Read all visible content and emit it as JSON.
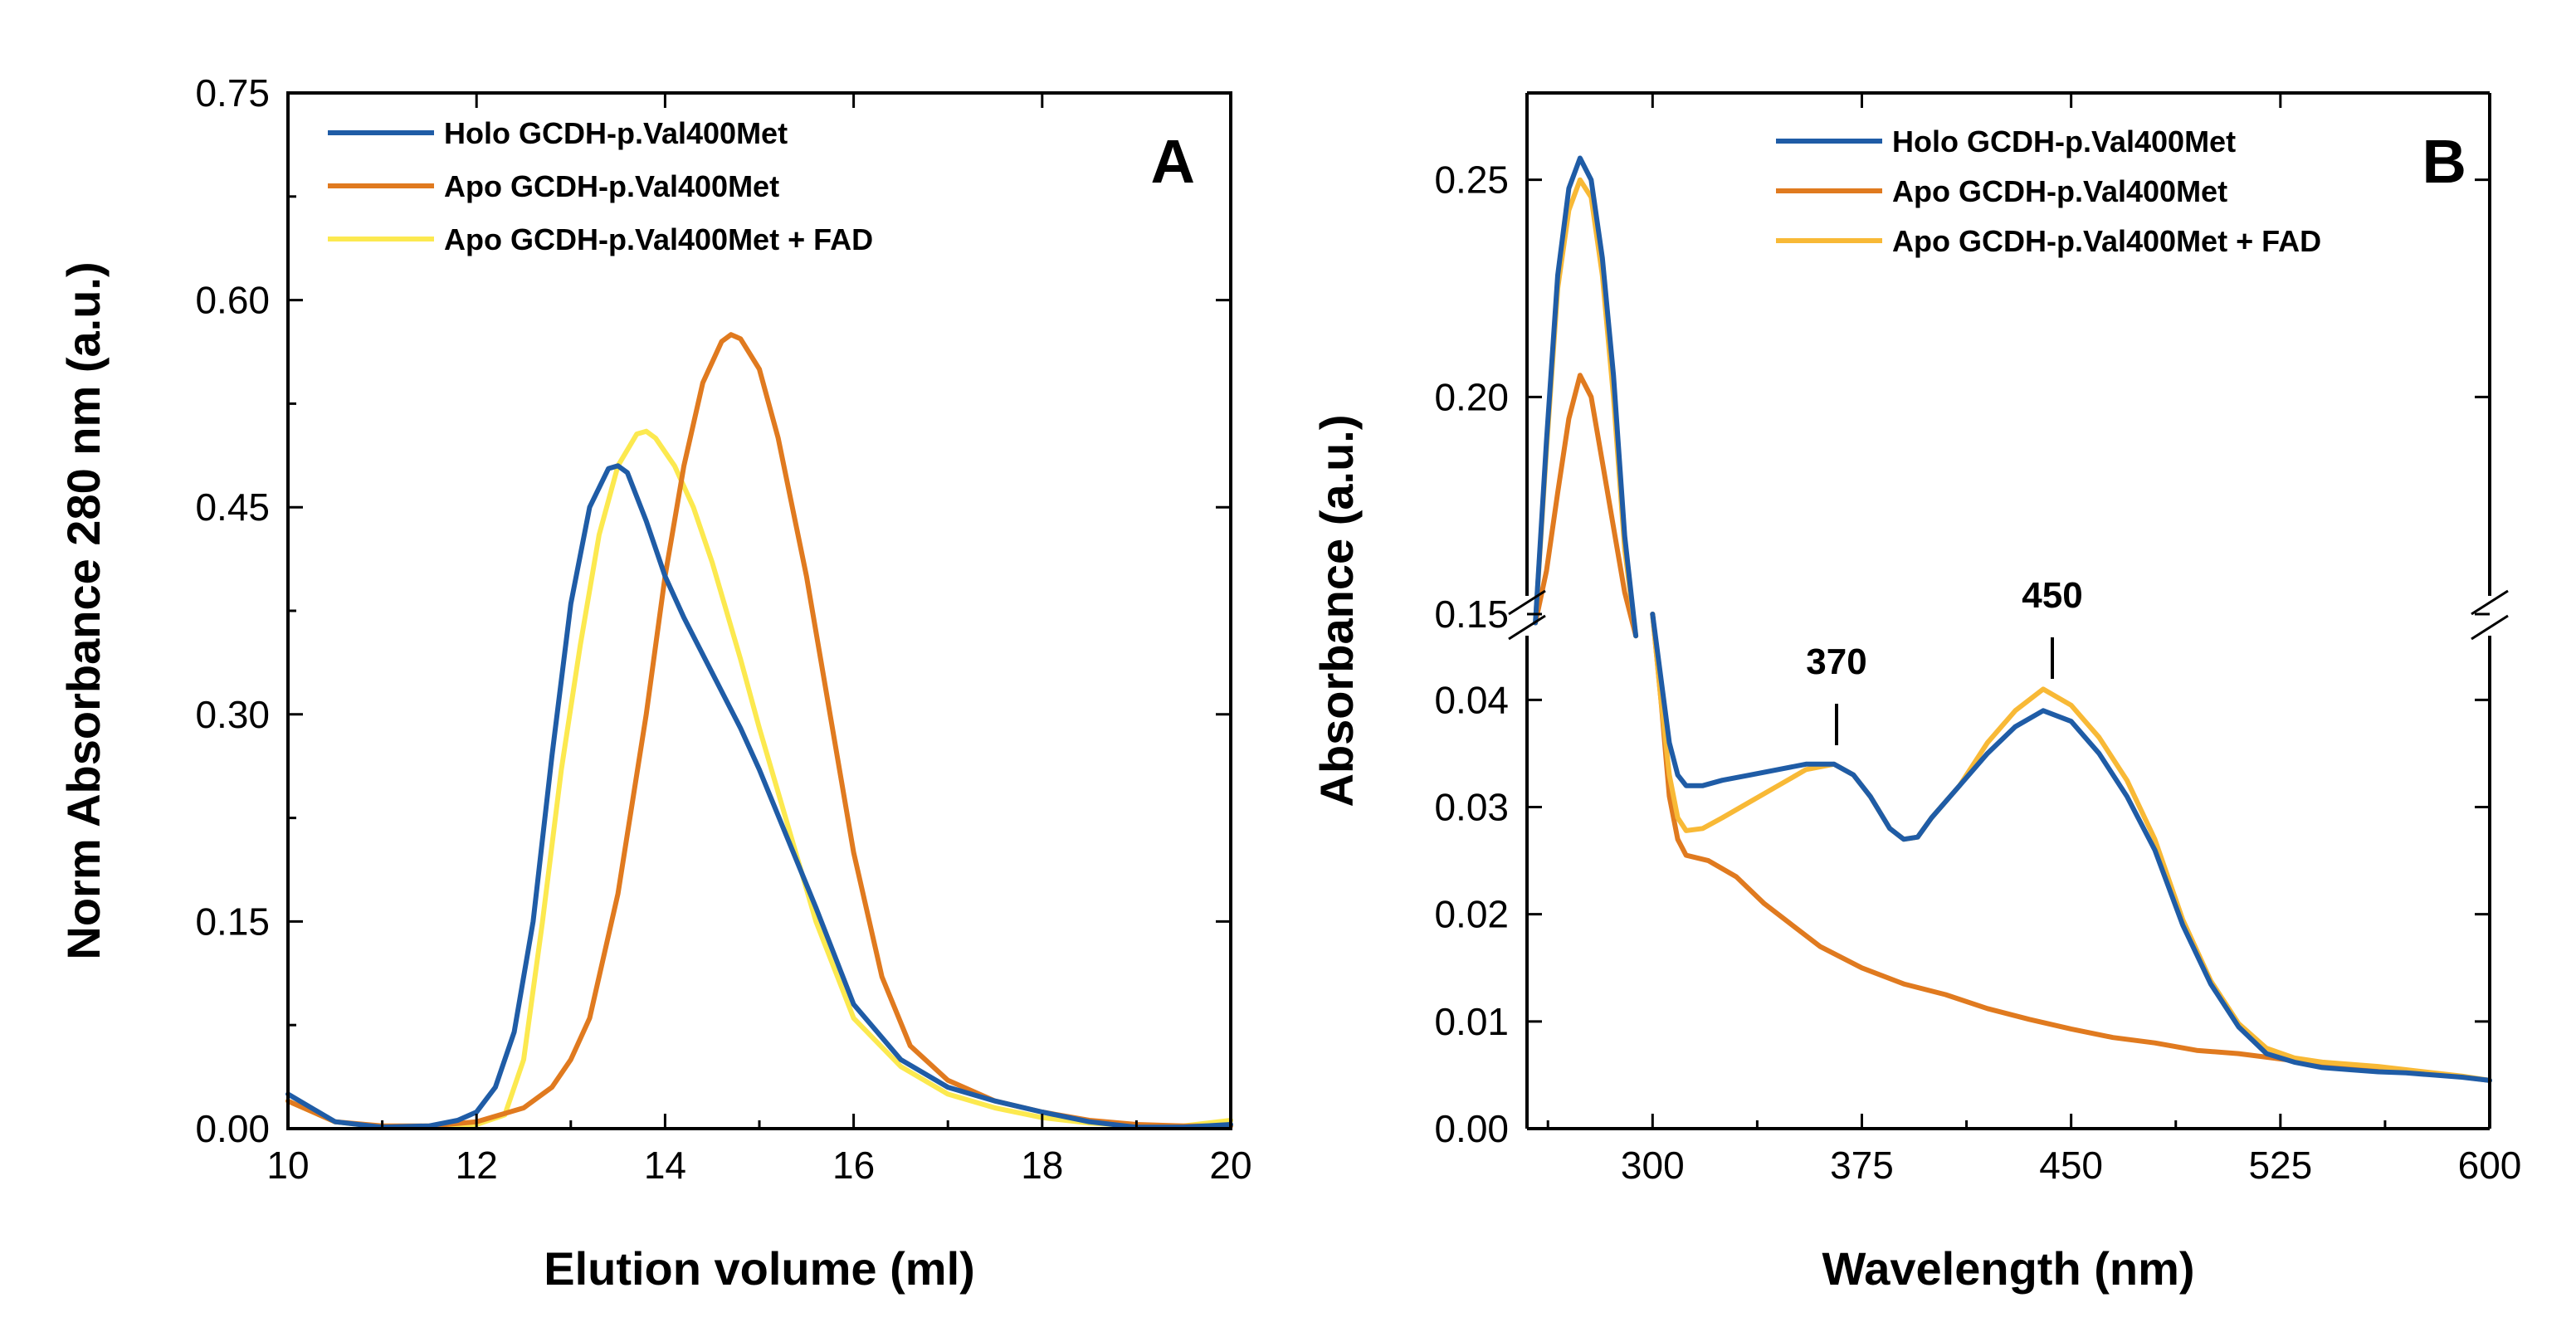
{
  "colors": {
    "holo": "#1f5ca6",
    "apo": "#e07a1f",
    "apo_fad_A": "#fce94f",
    "apo_fad_B": "#f8b936"
  },
  "chart_data": [
    {
      "type": "line",
      "panel_label": "A",
      "xlabel": "Elution volume (ml)",
      "ylabel": "Norm Absorbance 280 nm (a.u.)",
      "xlim": [
        10,
        20
      ],
      "ylim": [
        0,
        0.75
      ],
      "xticks": [
        "10",
        "12",
        "14",
        "16",
        "18",
        "20"
      ],
      "yticks": [
        "0.00",
        "0.15",
        "0.30",
        "0.45",
        "0.60",
        "0.75"
      ],
      "legend_position": "top-left",
      "series": [
        {
          "name": "Holo GCDH-p.Val400Met",
          "color_key": "holo",
          "x": [
            10,
            10.5,
            11,
            11.5,
            11.8,
            12.0,
            12.2,
            12.4,
            12.6,
            12.8,
            13.0,
            13.2,
            13.4,
            13.5,
            13.6,
            13.8,
            14.0,
            14.2,
            14.5,
            14.8,
            15.0,
            15.3,
            15.6,
            16.0,
            16.5,
            17.0,
            17.5,
            18.0,
            18.5,
            19.0,
            19.5,
            20.0
          ],
          "y": [
            0.025,
            0.005,
            0.001,
            0.002,
            0.006,
            0.012,
            0.03,
            0.07,
            0.15,
            0.27,
            0.38,
            0.45,
            0.478,
            0.48,
            0.475,
            0.44,
            0.4,
            0.37,
            0.33,
            0.29,
            0.26,
            0.21,
            0.16,
            0.09,
            0.05,
            0.03,
            0.02,
            0.012,
            0.005,
            0.001,
            0.001,
            0.003
          ]
        },
        {
          "name": "Apo GCDH-p.Val400Met",
          "color_key": "apo",
          "x": [
            10,
            10.5,
            11,
            11.5,
            12.0,
            12.5,
            12.8,
            13.0,
            13.2,
            13.5,
            13.8,
            14.0,
            14.2,
            14.4,
            14.6,
            14.7,
            14.8,
            15.0,
            15.2,
            15.5,
            15.8,
            16.0,
            16.3,
            16.6,
            17.0,
            17.5,
            18.0,
            18.5,
            19.0,
            19.5,
            20.0
          ],
          "y": [
            0.02,
            0.005,
            0.002,
            0.002,
            0.005,
            0.015,
            0.03,
            0.05,
            0.08,
            0.17,
            0.3,
            0.4,
            0.48,
            0.54,
            0.57,
            0.575,
            0.572,
            0.55,
            0.5,
            0.4,
            0.28,
            0.2,
            0.11,
            0.06,
            0.035,
            0.02,
            0.012,
            0.006,
            0.003,
            0.002,
            0.002
          ]
        },
        {
          "name": "Apo GCDH-p.Val400Met + FAD",
          "color_key": "apo_fad_A",
          "x": [
            10,
            10.5,
            11,
            11.5,
            12.0,
            12.3,
            12.5,
            12.7,
            12.9,
            13.1,
            13.3,
            13.5,
            13.7,
            13.8,
            13.9,
            14.1,
            14.3,
            14.5,
            14.8,
            15.0,
            15.3,
            15.6,
            16.0,
            16.5,
            17.0,
            17.5,
            18.0,
            18.5,
            19.0,
            19.5,
            20.0
          ],
          "y": [
            0.02,
            0.005,
            0.001,
            0.001,
            0.003,
            0.01,
            0.05,
            0.15,
            0.26,
            0.35,
            0.43,
            0.48,
            0.503,
            0.505,
            0.5,
            0.48,
            0.45,
            0.41,
            0.34,
            0.29,
            0.22,
            0.15,
            0.08,
            0.045,
            0.025,
            0.015,
            0.008,
            0.004,
            0.002,
            0.002,
            0.006
          ]
        }
      ]
    },
    {
      "type": "line",
      "panel_label": "B",
      "xlabel": "Wavelength (nm)",
      "ylabel": "Absorbance (a.u.)",
      "xlim": [
        255,
        600
      ],
      "ylim_upper": [
        0.15,
        0.27
      ],
      "ylim_lower": [
        0,
        0.048
      ],
      "axis_break": true,
      "xticks": [
        "300",
        "375",
        "450",
        "525",
        "600"
      ],
      "yticks_upper": [
        "0.15",
        "0.20",
        "0.25"
      ],
      "yticks_lower": [
        "0.00",
        "0.01",
        "0.02",
        "0.03",
        "0.04"
      ],
      "annotations": [
        "370",
        "450"
      ],
      "legend_position": "top-right",
      "series": [
        {
          "name": "Holo GCDH-p.Val400Met",
          "color_key": "holo",
          "upper_x": [
            258,
            262,
            266,
            270,
            274,
            278,
            282,
            286,
            290,
            294
          ],
          "upper_y": [
            0.148,
            0.19,
            0.228,
            0.248,
            0.255,
            0.25,
            0.232,
            0.205,
            0.168,
            0.145
          ],
          "lower_x": [
            300,
            303,
            306,
            309,
            312,
            318,
            325,
            335,
            345,
            355,
            365,
            372,
            378,
            385,
            390,
            395,
            400,
            410,
            420,
            430,
            440,
            450,
            460,
            470,
            480,
            490,
            500,
            510,
            520,
            530,
            540,
            550,
            560,
            570,
            580,
            590,
            600
          ],
          "lower_y": [
            0.048,
            0.042,
            0.036,
            0.033,
            0.032,
            0.032,
            0.0325,
            0.033,
            0.0335,
            0.034,
            0.034,
            0.033,
            0.031,
            0.028,
            0.027,
            0.0272,
            0.029,
            0.032,
            0.035,
            0.0375,
            0.039,
            0.038,
            0.035,
            0.031,
            0.026,
            0.019,
            0.0135,
            0.0095,
            0.007,
            0.0062,
            0.0057,
            0.0055,
            0.0053,
            0.0052,
            0.005,
            0.0048,
            0.0045
          ]
        },
        {
          "name": "Apo GCDH-p.Val400Met",
          "color_key": "apo",
          "upper_x": [
            258,
            262,
            266,
            270,
            274,
            278,
            282,
            286,
            290,
            294
          ],
          "upper_y": [
            0.148,
            0.16,
            0.178,
            0.195,
            0.205,
            0.2,
            0.185,
            0.17,
            0.155,
            0.145
          ],
          "lower_x": [
            300,
            303,
            306,
            309,
            312,
            320,
            330,
            340,
            350,
            360,
            375,
            390,
            405,
            420,
            435,
            450,
            465,
            480,
            495,
            510,
            525,
            540,
            555,
            570,
            585,
            600
          ],
          "lower_y": [
            0.048,
            0.04,
            0.031,
            0.027,
            0.0255,
            0.025,
            0.0235,
            0.021,
            0.019,
            0.017,
            0.015,
            0.0135,
            0.0125,
            0.0112,
            0.0102,
            0.0093,
            0.0085,
            0.008,
            0.0073,
            0.007,
            0.0065,
            0.006,
            0.0057,
            0.0054,
            0.005,
            0.0045
          ]
        },
        {
          "name": "Apo GCDH-p.Val400Met + FAD",
          "color_key": "apo_fad_B",
          "upper_x": [
            258,
            262,
            266,
            270,
            274,
            278,
            282,
            286,
            290,
            294
          ],
          "upper_y": [
            0.148,
            0.188,
            0.225,
            0.243,
            0.25,
            0.246,
            0.228,
            0.2,
            0.165,
            0.145
          ],
          "lower_x": [
            300,
            303,
            306,
            309,
            312,
            318,
            325,
            335,
            345,
            355,
            365,
            372,
            378,
            385,
            390,
            395,
            400,
            410,
            420,
            430,
            440,
            450,
            460,
            470,
            480,
            490,
            500,
            510,
            520,
            530,
            540,
            550,
            560,
            570,
            580,
            590,
            600
          ],
          "lower_y": [
            0.048,
            0.04,
            0.033,
            0.029,
            0.0278,
            0.028,
            0.029,
            0.0305,
            0.032,
            0.0335,
            0.034,
            0.033,
            0.031,
            0.028,
            0.027,
            0.0272,
            0.029,
            0.032,
            0.036,
            0.039,
            0.041,
            0.0395,
            0.0365,
            0.0325,
            0.027,
            0.0195,
            0.0138,
            0.0098,
            0.0075,
            0.0066,
            0.0062,
            0.006,
            0.0058,
            0.0055,
            0.0052,
            0.0049,
            0.0045
          ]
        }
      ]
    }
  ]
}
